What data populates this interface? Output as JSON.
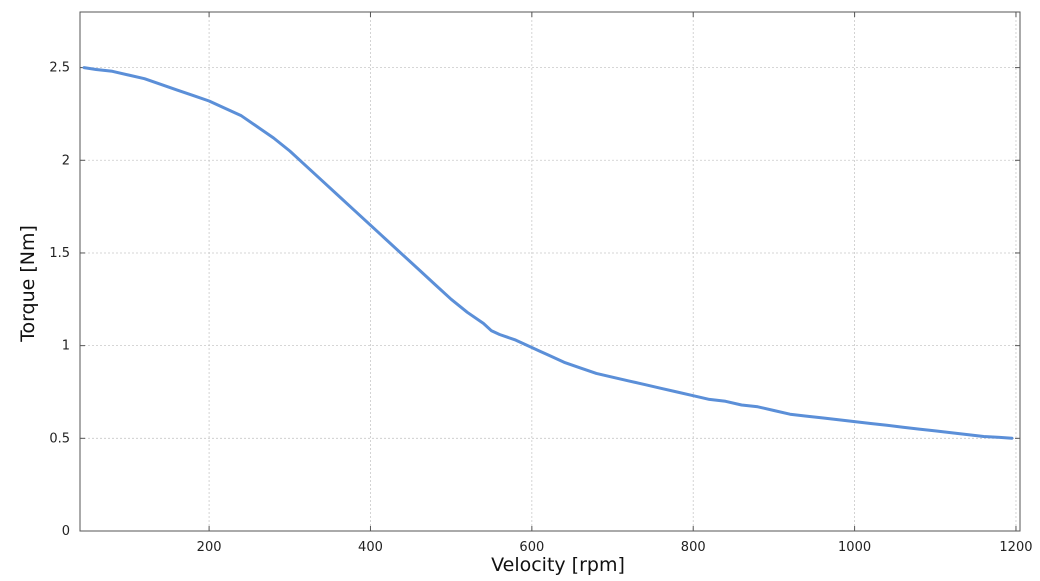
{
  "chart_data": {
    "type": "line",
    "title": "",
    "xlabel": "Velocity [rpm]",
    "ylabel": "Torque [Nm]",
    "xlim": [
      40,
      1205
    ],
    "ylim": [
      0,
      2.8
    ],
    "xticks": [
      200,
      400,
      600,
      800,
      1000,
      1200
    ],
    "xtick_labels": [
      "200",
      "400",
      "600",
      "800",
      "1000",
      "1200"
    ],
    "yticks": [
      0,
      0.5,
      1,
      1.5,
      2,
      2.5
    ],
    "ytick_labels": [
      "0",
      "0.5",
      "1",
      "1.5",
      "2",
      "2.5"
    ],
    "grid": true,
    "legend": "none",
    "line_color": "#5b8fd8",
    "series": [
      {
        "x": [
          45,
          60,
          80,
          100,
          120,
          140,
          160,
          180,
          200,
          220,
          240,
          260,
          280,
          300,
          320,
          340,
          360,
          380,
          400,
          420,
          440,
          460,
          480,
          500,
          520,
          540,
          550,
          560,
          580,
          600,
          610,
          620,
          640,
          660,
          680,
          700,
          720,
          740,
          760,
          780,
          800,
          820,
          840,
          860,
          880,
          900,
          920,
          940,
          960,
          980,
          1000,
          1020,
          1040,
          1060,
          1080,
          1100,
          1120,
          1140,
          1160,
          1180,
          1195
        ],
        "values": [
          2.5,
          2.49,
          2.48,
          2.46,
          2.44,
          2.41,
          2.38,
          2.35,
          2.32,
          2.28,
          2.24,
          2.18,
          2.12,
          2.05,
          1.97,
          1.89,
          1.81,
          1.73,
          1.65,
          1.57,
          1.49,
          1.41,
          1.33,
          1.25,
          1.18,
          1.12,
          1.08,
          1.06,
          1.03,
          0.99,
          0.97,
          0.95,
          0.91,
          0.88,
          0.85,
          0.83,
          0.81,
          0.79,
          0.77,
          0.75,
          0.73,
          0.71,
          0.7,
          0.68,
          0.67,
          0.65,
          0.63,
          0.62,
          0.61,
          0.6,
          0.59,
          0.58,
          0.57,
          0.56,
          0.55,
          0.54,
          0.53,
          0.52,
          0.51,
          0.505,
          0.5
        ]
      }
    ]
  }
}
